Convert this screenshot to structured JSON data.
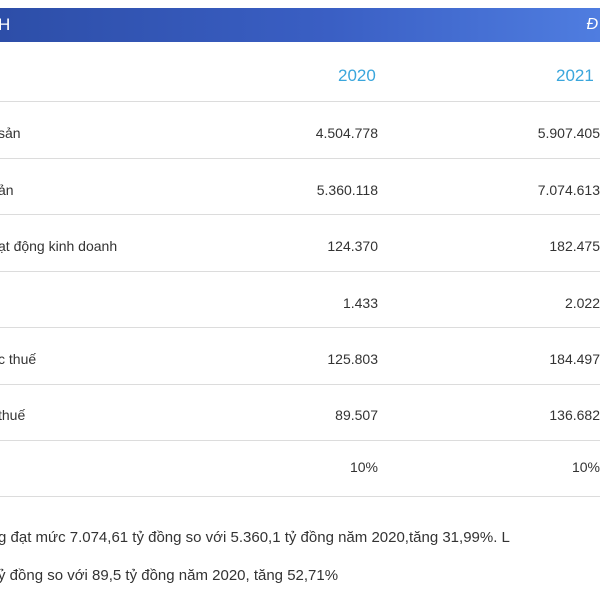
{
  "header": {
    "left": "H",
    "right": "Đ"
  },
  "columns": {
    "y2020": "2020",
    "y2021": "2021"
  },
  "rows": [
    {
      "label": "sản",
      "v2020": "4.504.778",
      "v2021": "5.907.405"
    },
    {
      "label": "ản",
      "v2020": "5.360.118",
      "v2021": "7.074.613"
    },
    {
      "label": "ạt động kinh doanh",
      "v2020": "124.370",
      "v2021": "182.475"
    },
    {
      "label": "",
      "v2020": "1.433",
      "v2021": "2.022"
    },
    {
      "label": "c thuế",
      "v2020": "125.803",
      "v2021": "184.497"
    },
    {
      "label": "thuế",
      "v2020": "89.507",
      "v2021": "136.682"
    },
    {
      "label": "",
      "v2020": "10%",
      "v2021": "10%"
    }
  ],
  "paragraph": {
    "line1": "g đạt mức 7.074,61 tỷ đồng so với 5.360,1 tỷ đồng năm 2020,tăng 31,99%. L",
    "line2": "ỷ đồng so với 89,5 tỷ đồng năm 2020, tăng 52,71%"
  }
}
